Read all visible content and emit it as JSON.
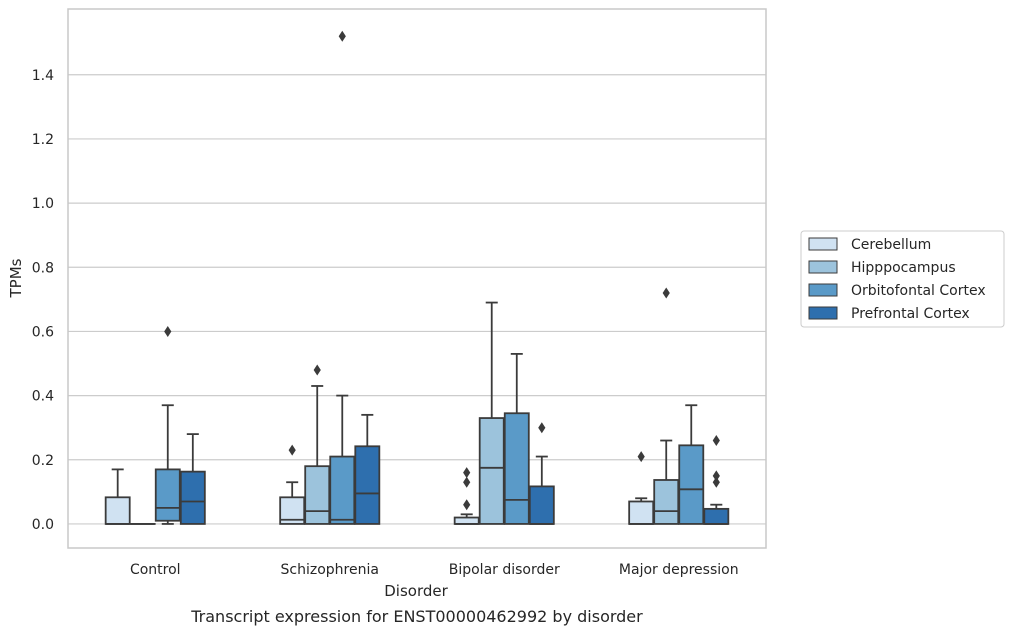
{
  "chart_data": {
    "type": "box",
    "caption": "Transcript expression for ENST00000462992 by disorder",
    "xlabel": "Disorder",
    "ylabel": "TPMs",
    "ylim": [
      -0.075,
      1.605
    ],
    "yticks": [
      0.0,
      0.2,
      0.4,
      0.6,
      0.8,
      1.0,
      1.2,
      1.4
    ],
    "ytick_labels": [
      "0.0",
      "0.2",
      "0.4",
      "0.6",
      "0.8",
      "1.0",
      "1.2",
      "1.4"
    ],
    "grid": "horizontal",
    "legend_position": "right",
    "categories": [
      "Control",
      "Schizophrenia",
      "Bipolar disorder",
      "Major depression"
    ],
    "series": [
      {
        "name": "Cerebellum",
        "color": "#d0e2f2",
        "boxes": [
          {
            "q1": 0.0,
            "median": 0.0,
            "q3": 0.083,
            "whisker_low": 0.0,
            "whisker_high": 0.17,
            "outliers": []
          },
          {
            "q1": 0.0,
            "median": 0.013,
            "q3": 0.083,
            "whisker_low": 0.0,
            "whisker_high": 0.13,
            "outliers": [
              0.23
            ]
          },
          {
            "q1": 0.0,
            "median": 0.0,
            "q3": 0.02,
            "whisker_low": 0.0,
            "whisker_high": 0.03,
            "outliers": [
              0.06,
              0.13,
              0.16
            ]
          },
          {
            "q1": 0.0,
            "median": 0.0,
            "q3": 0.07,
            "whisker_low": 0.0,
            "whisker_high": 0.08,
            "outliers": [
              0.21
            ]
          }
        ]
      },
      {
        "name": "Hipppocampus",
        "color": "#9cc3dc",
        "boxes": [
          {
            "q1": 0.0,
            "median": 0.0,
            "q3": 0.0,
            "whisker_low": 0.0,
            "whisker_high": 0.0,
            "outliers": []
          },
          {
            "q1": 0.0,
            "median": 0.04,
            "q3": 0.18,
            "whisker_low": 0.0,
            "whisker_high": 0.43,
            "outliers": [
              0.48
            ]
          },
          {
            "q1": 0.0,
            "median": 0.175,
            "q3": 0.33,
            "whisker_low": 0.0,
            "whisker_high": 0.69,
            "outliers": []
          },
          {
            "q1": 0.0,
            "median": 0.04,
            "q3": 0.137,
            "whisker_low": 0.0,
            "whisker_high": 0.26,
            "outliers": [
              0.72
            ]
          }
        ]
      },
      {
        "name": "Orbitofontal Cortex",
        "color": "#5a9ac8",
        "boxes": [
          {
            "q1": 0.01,
            "median": 0.05,
            "q3": 0.17,
            "whisker_low": 0.0,
            "whisker_high": 0.37,
            "outliers": [
              0.6
            ]
          },
          {
            "q1": 0.0,
            "median": 0.013,
            "q3": 0.21,
            "whisker_low": 0.0,
            "whisker_high": 0.4,
            "outliers": [
              1.52
            ]
          },
          {
            "q1": 0.0,
            "median": 0.075,
            "q3": 0.345,
            "whisker_low": 0.0,
            "whisker_high": 0.53,
            "outliers": []
          },
          {
            "q1": 0.0,
            "median": 0.108,
            "q3": 0.245,
            "whisker_low": 0.0,
            "whisker_high": 0.37,
            "outliers": []
          }
        ]
      },
      {
        "name": "Prefrontal Cortex",
        "color": "#2e6fae",
        "boxes": [
          {
            "q1": 0.0,
            "median": 0.07,
            "q3": 0.163,
            "whisker_low": 0.0,
            "whisker_high": 0.28,
            "outliers": []
          },
          {
            "q1": 0.0,
            "median": 0.095,
            "q3": 0.242,
            "whisker_low": 0.0,
            "whisker_high": 0.34,
            "outliers": []
          },
          {
            "q1": 0.0,
            "median": 0.0,
            "q3": 0.117,
            "whisker_low": 0.0,
            "whisker_high": 0.21,
            "outliers": [
              0.3
            ]
          },
          {
            "q1": 0.0,
            "median": 0.0,
            "q3": 0.047,
            "whisker_low": 0.0,
            "whisker_high": 0.06,
            "outliers": [
              0.13,
              0.15,
              0.26
            ]
          }
        ]
      }
    ]
  },
  "colors": {
    "box_edge": "#3b3b3b",
    "grid": "#cccccc",
    "frame": "#c8c8c8",
    "text": "#262626"
  }
}
